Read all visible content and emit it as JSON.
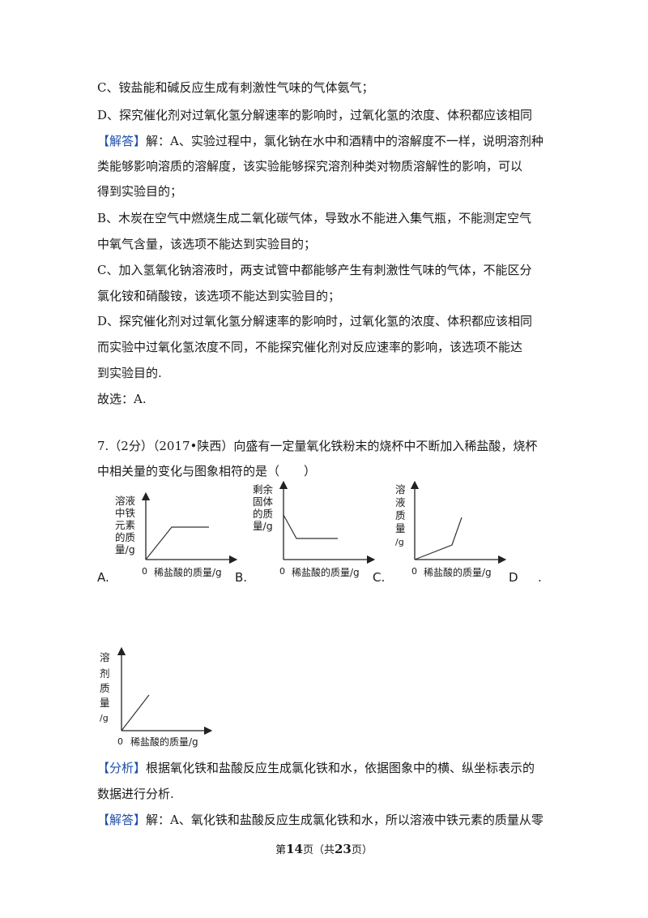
{
  "lines": [
    {
      "text": "C、铵盐能和碱反应生成有刺激性气味的气体氨气；"
    },
    {
      "text": "D、探究催化剂对过氧化氢分解速率的影响时，过氧化氢的浓度、体积都应该相同"
    },
    {
      "tag": "【解答】",
      "text": "解：A、实验过程中，氯化钠在水中和酒精中的溶解度不一样，说明溶剂种"
    },
    {
      "text": "类能够影响溶质的溶解度，该实验能够探究溶剂种类对物质溶解性的影响，可以"
    },
    {
      "text": "得到实验目的；"
    },
    {
      "text": "B、木炭在空气中燃烧生成二氧化碳气体，导致水不能进入集气瓶，不能测定空气"
    },
    {
      "text": "中氧气含量，该选项不能达到实验目的；"
    },
    {
      "text": "C、加入氢氧化钠溶液时，两支试管中都能够产生有刺激性气味的气体，不能区分"
    },
    {
      "text": "氯化铵和硝酸铵，该选项不能达到实验目的；"
    },
    {
      "text": "D、探究催化剂对过氧化氢分解速率的影响时，过氧化氢的浓度、体积都应该相同"
    },
    {
      "text": "而实验中过氧化氢浓度不同，不能探究催化剂对反应速率的影响，该选项不能达"
    },
    {
      "text": "到实验目的."
    },
    {
      "text": "故选：A."
    }
  ],
  "question": {
    "line1": "7.（2分）（2017•陕西）向盛有一定量氧化铁粉末的烧杯中不断加入稀盐酸，烧杯",
    "line2": "中相关量的变化与图象相符的是（　　）"
  },
  "graphs": {
    "A": {
      "option": "A.",
      "ylabel": [
        "溶液",
        "中铁",
        "元素",
        "的质",
        "量/g"
      ],
      "xlabel": "稀盐酸的质量/g",
      "origin": "0"
    },
    "B": {
      "option": "B.",
      "ylabel": [
        "剩余",
        "固体",
        "的质",
        "量/g"
      ],
      "xlabel": "稀盐酸的质量/g",
      "origin": "0"
    },
    "C": {
      "option": "C.",
      "ylabel": [
        "溶",
        "液",
        "质",
        "量",
        "/g"
      ],
      "xlabel": "稀盐酸的质量/g",
      "origin": "0"
    },
    "D": {
      "option": "D",
      "ylabel": [
        "溶",
        "剂",
        "质",
        "量",
        "/g"
      ],
      "xlabel": "稀盐酸的质量/g",
      "origin": "0"
    }
  },
  "trailing_dot": ".",
  "analysis": {
    "tag": "【分析】",
    "line1": "根据氧化铁和盐酸反应生成氯化铁和水，依据图象中的横、纵坐标表示的",
    "line2": "数据进行分析."
  },
  "answer2": {
    "tag": "【解答】",
    "line1": "解：A、氧化铁和盐酸反应生成氯化铁和水，所以溶液中铁元素的质量从零"
  },
  "footer": {
    "prefix": "第",
    "page": "14",
    "mid": "页（共",
    "total": "23",
    "suffix": "页）"
  }
}
